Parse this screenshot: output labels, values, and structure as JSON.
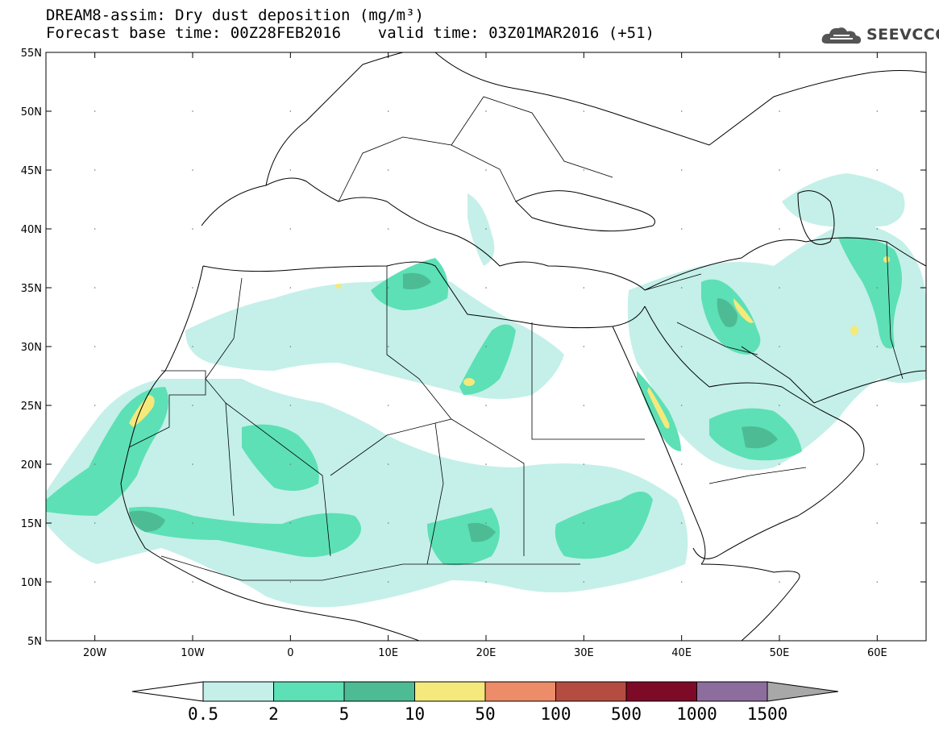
{
  "title": {
    "line1": "DREAM8-assim: Dry dust deposition (mg/m³)",
    "line2": "Forecast base time: 00Z28FEB2016    valid time: 03Z01MAR2016 (+51)"
  },
  "logo": {
    "text": "SEEVCCC",
    "icon": "cloud-icon"
  },
  "map": {
    "lat_labels": [
      "55N",
      "50N",
      "45N",
      "40N",
      "35N",
      "30N",
      "25N",
      "20N",
      "15N",
      "10N",
      "5N"
    ],
    "lon_labels": [
      "20W",
      "10W",
      "0",
      "10E",
      "20E",
      "30E",
      "40E",
      "50E",
      "60E"
    ]
  },
  "colorbar": {
    "labels": [
      "0.5",
      "2",
      "5",
      "10",
      "50",
      "100",
      "500",
      "1000",
      "1500"
    ],
    "colors": [
      "#c4f0e9",
      "#5de0b5",
      "#4dbc94",
      "#f4e97a",
      "#ec8c68",
      "#b54c42",
      "#7d0a26",
      "#8d6d9d",
      "#a8a8a8"
    ]
  },
  "layers": {
    "levels": [
      "0.5",
      "2",
      "5",
      "10"
    ],
    "fill_colors": [
      "#c4f0e9",
      "#5de0b5",
      "#4dbc94",
      "#f4e97a"
    ]
  }
}
